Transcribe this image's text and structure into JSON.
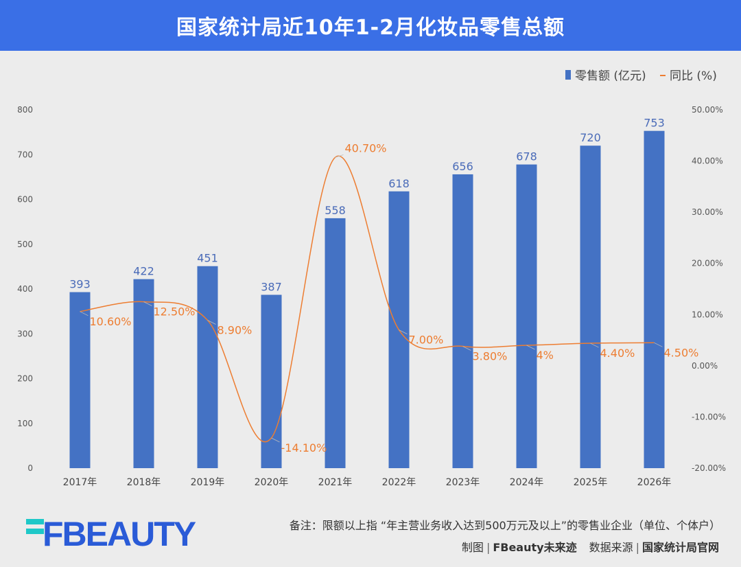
{
  "title": "国家统计局近10年1-2月化妆品零售总额",
  "chart_data": {
    "type": "bar+line",
    "categories": [
      "2017年",
      "2018年",
      "2019年",
      "2020年",
      "2021年",
      "2022年",
      "2023年",
      "2024年",
      "2025年",
      "2026年"
    ],
    "series": [
      {
        "name": "零售额 (亿元)",
        "type": "bar",
        "axis": "left",
        "color": "#4472c4",
        "values": [
          393,
          422,
          451,
          387,
          558,
          618,
          656,
          678,
          720,
          753
        ],
        "labels": [
          "393",
          "422",
          "451",
          "387",
          "558",
          "618",
          "656",
          "678",
          "720",
          "753"
        ]
      },
      {
        "name": "同比 (%)",
        "type": "line",
        "axis": "right",
        "color": "#ed7d31",
        "values": [
          10.6,
          12.5,
          8.9,
          -14.1,
          40.7,
          7.0,
          3.8,
          4.0,
          4.4,
          4.5
        ],
        "labels": [
          "10.60%",
          "12.50%",
          "8.90%",
          "-14.10%",
          "40.70%",
          "7.00%",
          "3.80%",
          "4%",
          "4.40%",
          "4.50%"
        ]
      }
    ],
    "y_left": {
      "min": 0,
      "max": 800,
      "ticks": [
        "0",
        "100",
        "200",
        "300",
        "400",
        "500",
        "600",
        "700",
        "800"
      ]
    },
    "y_right": {
      "min": -20,
      "max": 50,
      "ticks": [
        "-20.00%",
        "-10.00%",
        "0.00%",
        "10.00%",
        "20.00%",
        "30.00%",
        "40.00%",
        "50.00%"
      ]
    },
    "legend_position": "top-right",
    "grid": false
  },
  "footer": {
    "note": "备注：限额以上指 “年主营业务收入达到500万元及以上”的零售业企业（单位、个体户）",
    "credit_label": "制图",
    "credit_value": "FBeauty未来迹",
    "source_label": "数据来源",
    "source_value": "国家统计局官网",
    "logo_text": "FBEAUTY"
  }
}
